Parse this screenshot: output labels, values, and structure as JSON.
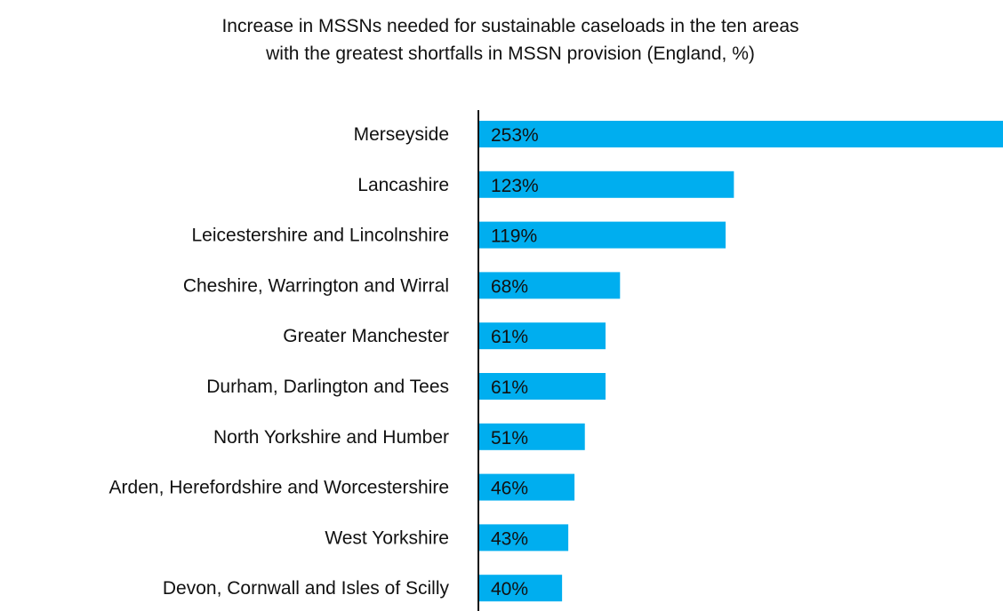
{
  "chart_data": {
    "type": "bar",
    "orientation": "horizontal",
    "title_lines": [
      "Increase in MSSNs needed for sustainable caseloads in the ten areas",
      "with the greatest shortfalls in MSSN provision (England, %)"
    ],
    "categories": [
      "Merseyside",
      "Lancashire",
      "Leicestershire and Lincolnshire",
      "Cheshire, Warrington and Wirral",
      "Greater Manchester",
      "Durham, Darlington and Tees",
      "North Yorkshire and Humber",
      "Arden, Herefordshire and Worcestershire",
      "West Yorkshire",
      "Devon, Cornwall and Isles of Scilly"
    ],
    "values": [
      253,
      123,
      119,
      68,
      61,
      61,
      51,
      46,
      43,
      40
    ],
    "value_labels": [
      "253%",
      "123%",
      "119%",
      "68%",
      "61%",
      "61%",
      "51%",
      "46%",
      "43%",
      "40%"
    ],
    "unit": "%",
    "xlim": [
      0,
      253
    ],
    "grid": false,
    "legend": "none",
    "bar_color": "#00aeef",
    "axis_color": "#111111"
  }
}
